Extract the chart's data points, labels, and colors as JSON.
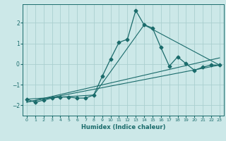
{
  "xlabel": "Humidex (Indice chaleur)",
  "ylabel": "",
  "bg_color": "#cce8e8",
  "line_color": "#1a6b6b",
  "grid_color": "#aacfcf",
  "xlim": [
    -0.5,
    23.5
  ],
  "ylim": [
    -2.5,
    2.9
  ],
  "yticks": [
    -2,
    -1,
    0,
    1,
    2
  ],
  "xticks": [
    0,
    1,
    2,
    3,
    4,
    5,
    6,
    7,
    8,
    9,
    10,
    11,
    12,
    13,
    14,
    15,
    16,
    17,
    18,
    19,
    20,
    21,
    22,
    23
  ],
  "main_line_x": [
    0,
    1,
    2,
    3,
    4,
    5,
    6,
    7,
    8,
    9,
    10,
    11,
    12,
    13,
    14,
    15,
    16,
    17,
    18,
    19,
    20,
    21,
    22,
    23
  ],
  "main_line_y": [
    -1.7,
    -1.85,
    -1.75,
    -1.65,
    -1.6,
    -1.6,
    -1.65,
    -1.65,
    -1.5,
    -0.6,
    0.25,
    1.05,
    1.2,
    2.6,
    1.9,
    1.75,
    0.8,
    -0.1,
    0.35,
    0.02,
    -0.3,
    -0.15,
    -0.05,
    -0.05
  ],
  "line2_x": [
    0,
    8,
    14,
    23
  ],
  "line2_y": [
    -1.7,
    -1.5,
    1.9,
    -0.05
  ],
  "line3_x": [
    0,
    23
  ],
  "line3_y": [
    -1.85,
    -0.05
  ],
  "line4_x": [
    0,
    23
  ],
  "line4_y": [
    -1.85,
    0.3
  ],
  "marker_size": 2.5
}
